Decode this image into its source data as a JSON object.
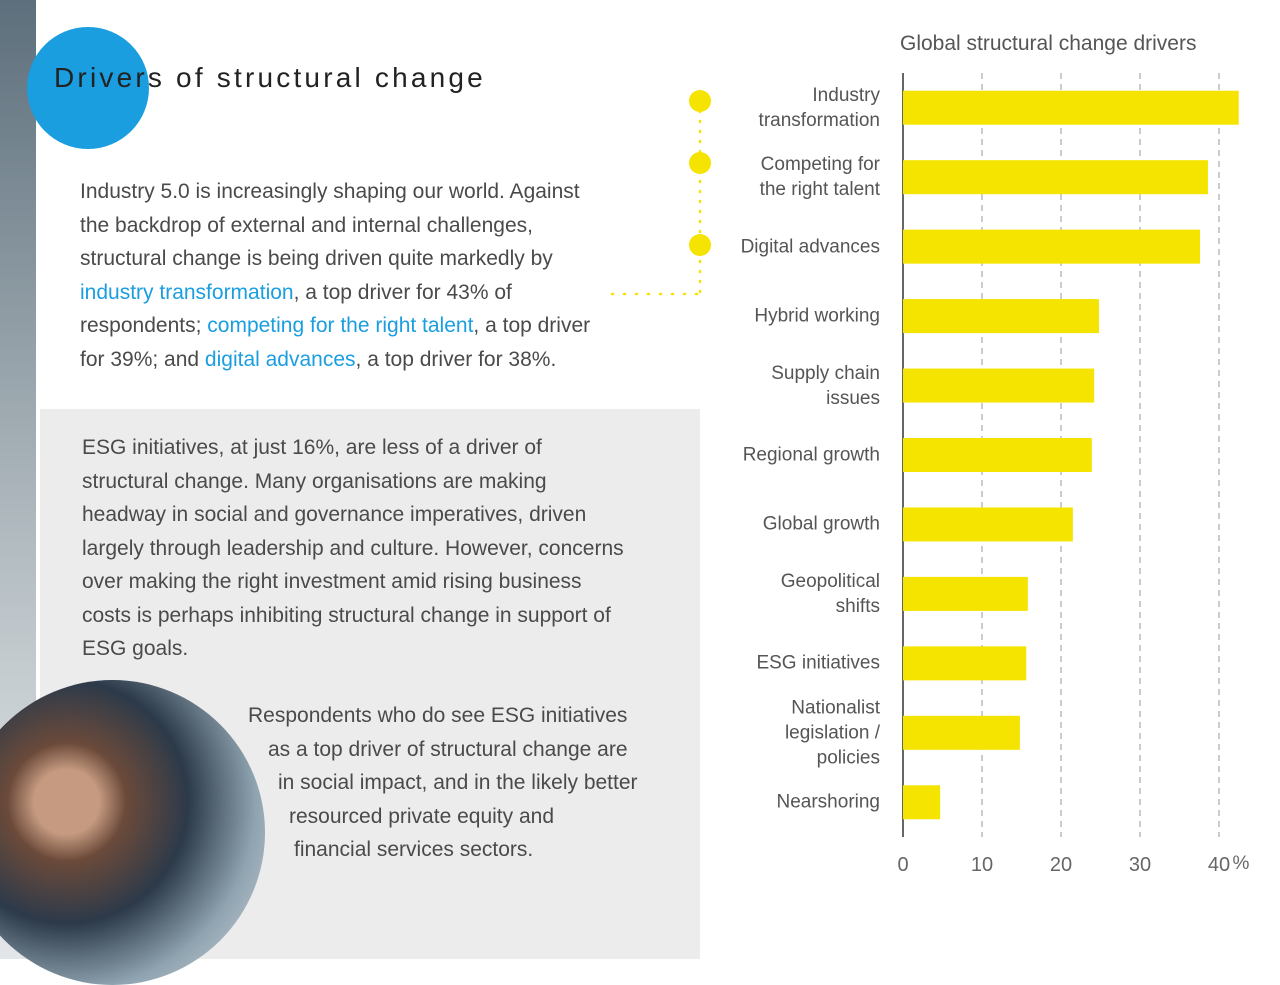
{
  "header": {
    "title": "Drivers of structural change"
  },
  "intro": {
    "lines": [
      [
        "Industry 5.0 is increasingly shaping our world. Against"
      ],
      [
        "the backdrop of external and internal challenges,"
      ],
      [
        "structural change is being driven quite markedly by"
      ],
      [
        {
          "text": "industry transformation",
          "highlight": true
        },
        ", a top driver for 43% of"
      ],
      [
        "respondents; ",
        {
          "text": "competing for the right talent",
          "highlight": true
        },
        ", a top driver"
      ],
      [
        "for 39%; and ",
        {
          "text": "digital advances",
          "highlight": true
        },
        ", a top driver for 38%."
      ]
    ]
  },
  "esg": {
    "lines": [
      "ESG initiatives, at just 16%, are less of a driver of",
      "structural change. Many organisations are making",
      "headway in social and governance imperatives, driven",
      "largely through leadership and culture. However, concerns",
      "over making the right investment amid rising business",
      "costs is perhaps inhibiting structural change in support of",
      "ESG goals."
    ]
  },
  "respondents": {
    "lines": [
      "Respondents who do see ESG initiatives",
      "as a top driver of structural change are",
      "in social impact, and in the likely better",
      "resourced private equity and",
      "financial services sectors."
    ]
  },
  "chart_data": {
    "type": "hbar",
    "title": "Global structural change drivers",
    "categories": [
      "Industry\ntransformation",
      "Competing for\nthe right talent",
      "Digital advances",
      "Hybrid working",
      "Supply chain\nissues",
      "Regional growth",
      "Global growth",
      "Geopolitical\nshifts",
      "ESG initiatives",
      "Nationalist\nlegislation /\npolicies",
      "Nearshoring"
    ],
    "values": [
      42.5,
      38.6,
      37.6,
      24.8,
      24.2,
      23.9,
      21.5,
      15.8,
      15.6,
      14.8,
      4.7
    ],
    "color": "#f5e400",
    "xlim": [
      0,
      40
    ],
    "xticks": [
      0,
      10,
      20,
      30,
      40
    ],
    "x_unit": "%",
    "grid": true
  }
}
